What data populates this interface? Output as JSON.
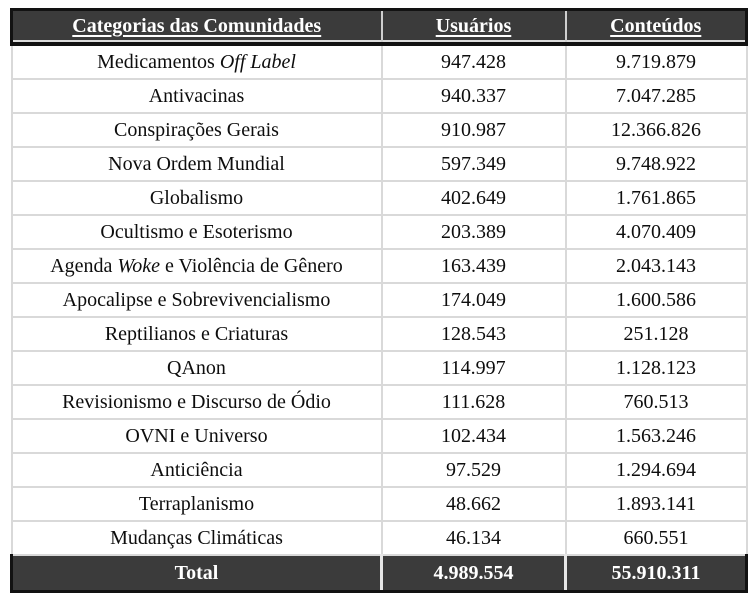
{
  "table": {
    "columns": [
      "Categorias das Comunidades",
      "Usuários",
      "Conteúdos"
    ],
    "rows": [
      {
        "category_segments": [
          {
            "text": "Medicamentos ",
            "italic": false
          },
          {
            "text": "Off Label",
            "italic": true
          }
        ],
        "users": "947.428",
        "contents": "9.719.879"
      },
      {
        "category_segments": [
          {
            "text": "Antivacinas",
            "italic": false
          }
        ],
        "users": "940.337",
        "contents": "7.047.285"
      },
      {
        "category_segments": [
          {
            "text": "Conspirações Gerais",
            "italic": false
          }
        ],
        "users": "910.987",
        "contents": "12.366.826"
      },
      {
        "category_segments": [
          {
            "text": "Nova Ordem Mundial",
            "italic": false
          }
        ],
        "users": "597.349",
        "contents": "9.748.922"
      },
      {
        "category_segments": [
          {
            "text": "Globalismo",
            "italic": false
          }
        ],
        "users": "402.649",
        "contents": "1.761.865"
      },
      {
        "category_segments": [
          {
            "text": "Ocultismo e Esoterismo",
            "italic": false
          }
        ],
        "users": "203.389",
        "contents": "4.070.409"
      },
      {
        "category_segments": [
          {
            "text": "Agenda ",
            "italic": false
          },
          {
            "text": "Woke",
            "italic": true
          },
          {
            "text": " e Violência de Gênero",
            "italic": false
          }
        ],
        "users": "163.439",
        "contents": "2.043.143"
      },
      {
        "category_segments": [
          {
            "text": "Apocalipse e Sobrevivencialismo",
            "italic": false
          }
        ],
        "users": "174.049",
        "contents": "1.600.586"
      },
      {
        "category_segments": [
          {
            "text": "Reptilianos e Criaturas",
            "italic": false
          }
        ],
        "users": "128.543",
        "contents": "251.128"
      },
      {
        "category_segments": [
          {
            "text": "QAnon",
            "italic": false
          }
        ],
        "users": "114.997",
        "contents": "1.128.123"
      },
      {
        "category_segments": [
          {
            "text": "Revisionismo e Discurso de Ódio",
            "italic": false
          }
        ],
        "users": "111.628",
        "contents": "760.513"
      },
      {
        "category_segments": [
          {
            "text": "OVNI e Universo",
            "italic": false
          }
        ],
        "users": "102.434",
        "contents": "1.563.246"
      },
      {
        "category_segments": [
          {
            "text": "Anticiência",
            "italic": false
          }
        ],
        "users": "97.529",
        "contents": "1.294.694"
      },
      {
        "category_segments": [
          {
            "text": "Terraplanismo",
            "italic": false
          }
        ],
        "users": "48.662",
        "contents": "1.893.141"
      },
      {
        "category_segments": [
          {
            "text": "Mudanças Climáticas",
            "italic": false
          }
        ],
        "users": "46.134",
        "contents": "660.551"
      }
    ],
    "total": {
      "label": "Total",
      "users": "4.989.554",
      "contents": "55.910.311"
    }
  },
  "colors": {
    "header_bg": "#3b3b3b",
    "header_text": "#ffffff",
    "grid_line": "#d9d9d9",
    "heavy_border": "#121212",
    "body_text": "#0d0d0d"
  }
}
